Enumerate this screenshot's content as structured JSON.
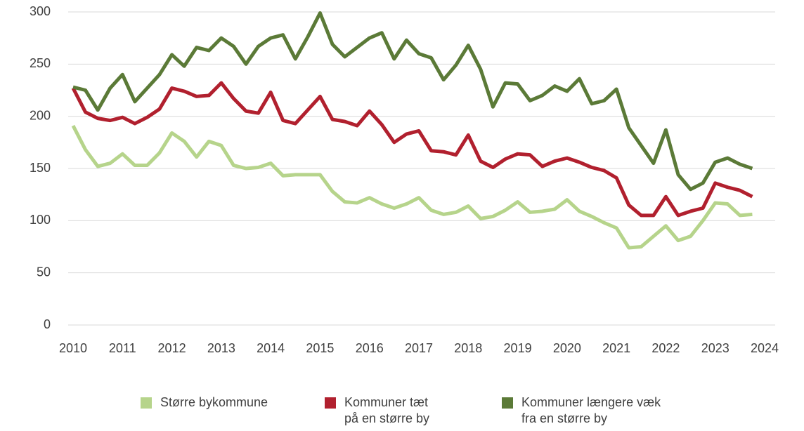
{
  "chart_data": {
    "type": "line",
    "x": [
      2010,
      2010.25,
      2010.5,
      2010.75,
      2011,
      2011.25,
      2011.5,
      2011.75,
      2012,
      2012.25,
      2012.5,
      2012.75,
      2013,
      2013.25,
      2013.5,
      2013.75,
      2014,
      2014.25,
      2014.5,
      2014.75,
      2015,
      2015.25,
      2015.5,
      2015.75,
      2016,
      2016.25,
      2016.5,
      2016.75,
      2017,
      2017.25,
      2017.5,
      2017.75,
      2018,
      2018.25,
      2018.5,
      2018.75,
      2019,
      2019.25,
      2019.5,
      2019.75,
      2020,
      2020.25,
      2020.5,
      2020.75,
      2021,
      2021.25,
      2021.5,
      2021.75,
      2022,
      2022.25,
      2022.5,
      2022.75,
      2023,
      2023.25,
      2023.5,
      2023.75
    ],
    "series": [
      {
        "name": "Større bykommune",
        "color": "#b6d48b",
        "values": [
          191,
          168,
          152,
          155,
          164,
          153,
          153,
          165,
          184,
          176,
          161,
          176,
          172,
          153,
          150,
          151,
          155,
          143,
          144,
          144,
          144,
          128,
          118,
          117,
          122,
          116,
          112,
          116,
          122,
          110,
          106,
          108,
          114,
          102,
          104,
          110,
          118,
          108,
          109,
          111,
          120,
          109,
          104,
          98,
          93,
          74,
          75,
          85,
          95,
          81,
          85,
          100,
          117,
          116,
          105,
          106
        ]
      },
      {
        "name": "Kommuner tæt\npå en større by",
        "color": "#b1202e",
        "values": [
          227,
          204,
          198,
          196,
          199,
          193,
          199,
          207,
          227,
          224,
          219,
          220,
          232,
          217,
          205,
          203,
          223,
          196,
          193,
          206,
          219,
          197,
          195,
          191,
          205,
          192,
          175,
          183,
          186,
          167,
          166,
          163,
          182,
          157,
          151,
          159,
          164,
          163,
          152,
          157,
          160,
          156,
          151,
          148,
          141,
          115,
          105,
          105,
          123,
          105,
          109,
          112,
          136,
          132,
          129,
          123
        ]
      },
      {
        "name": "Kommuner længere væk\nfra en større by",
        "color": "#5b7a37",
        "values": [
          228,
          225,
          206,
          227,
          240,
          214,
          227,
          240,
          259,
          248,
          266,
          263,
          275,
          267,
          250,
          267,
          275,
          278,
          255,
          276,
          299,
          269,
          257,
          266,
          275,
          280,
          255,
          273,
          260,
          256,
          235,
          249,
          268,
          245,
          209,
          232,
          231,
          215,
          220,
          229,
          224,
          236,
          212,
          215,
          226,
          189,
          172,
          155,
          187,
          144,
          130,
          136,
          156,
          160,
          154,
          150
        ]
      }
    ],
    "xlim": [
      2010,
      2024
    ],
    "xticks": [
      2010,
      2011,
      2012,
      2013,
      2014,
      2015,
      2016,
      2017,
      2018,
      2019,
      2020,
      2021,
      2022,
      2023,
      2024
    ],
    "ylim": [
      0,
      300
    ],
    "yticks": [
      0,
      50,
      100,
      150,
      200,
      250,
      300
    ],
    "grid": true
  }
}
